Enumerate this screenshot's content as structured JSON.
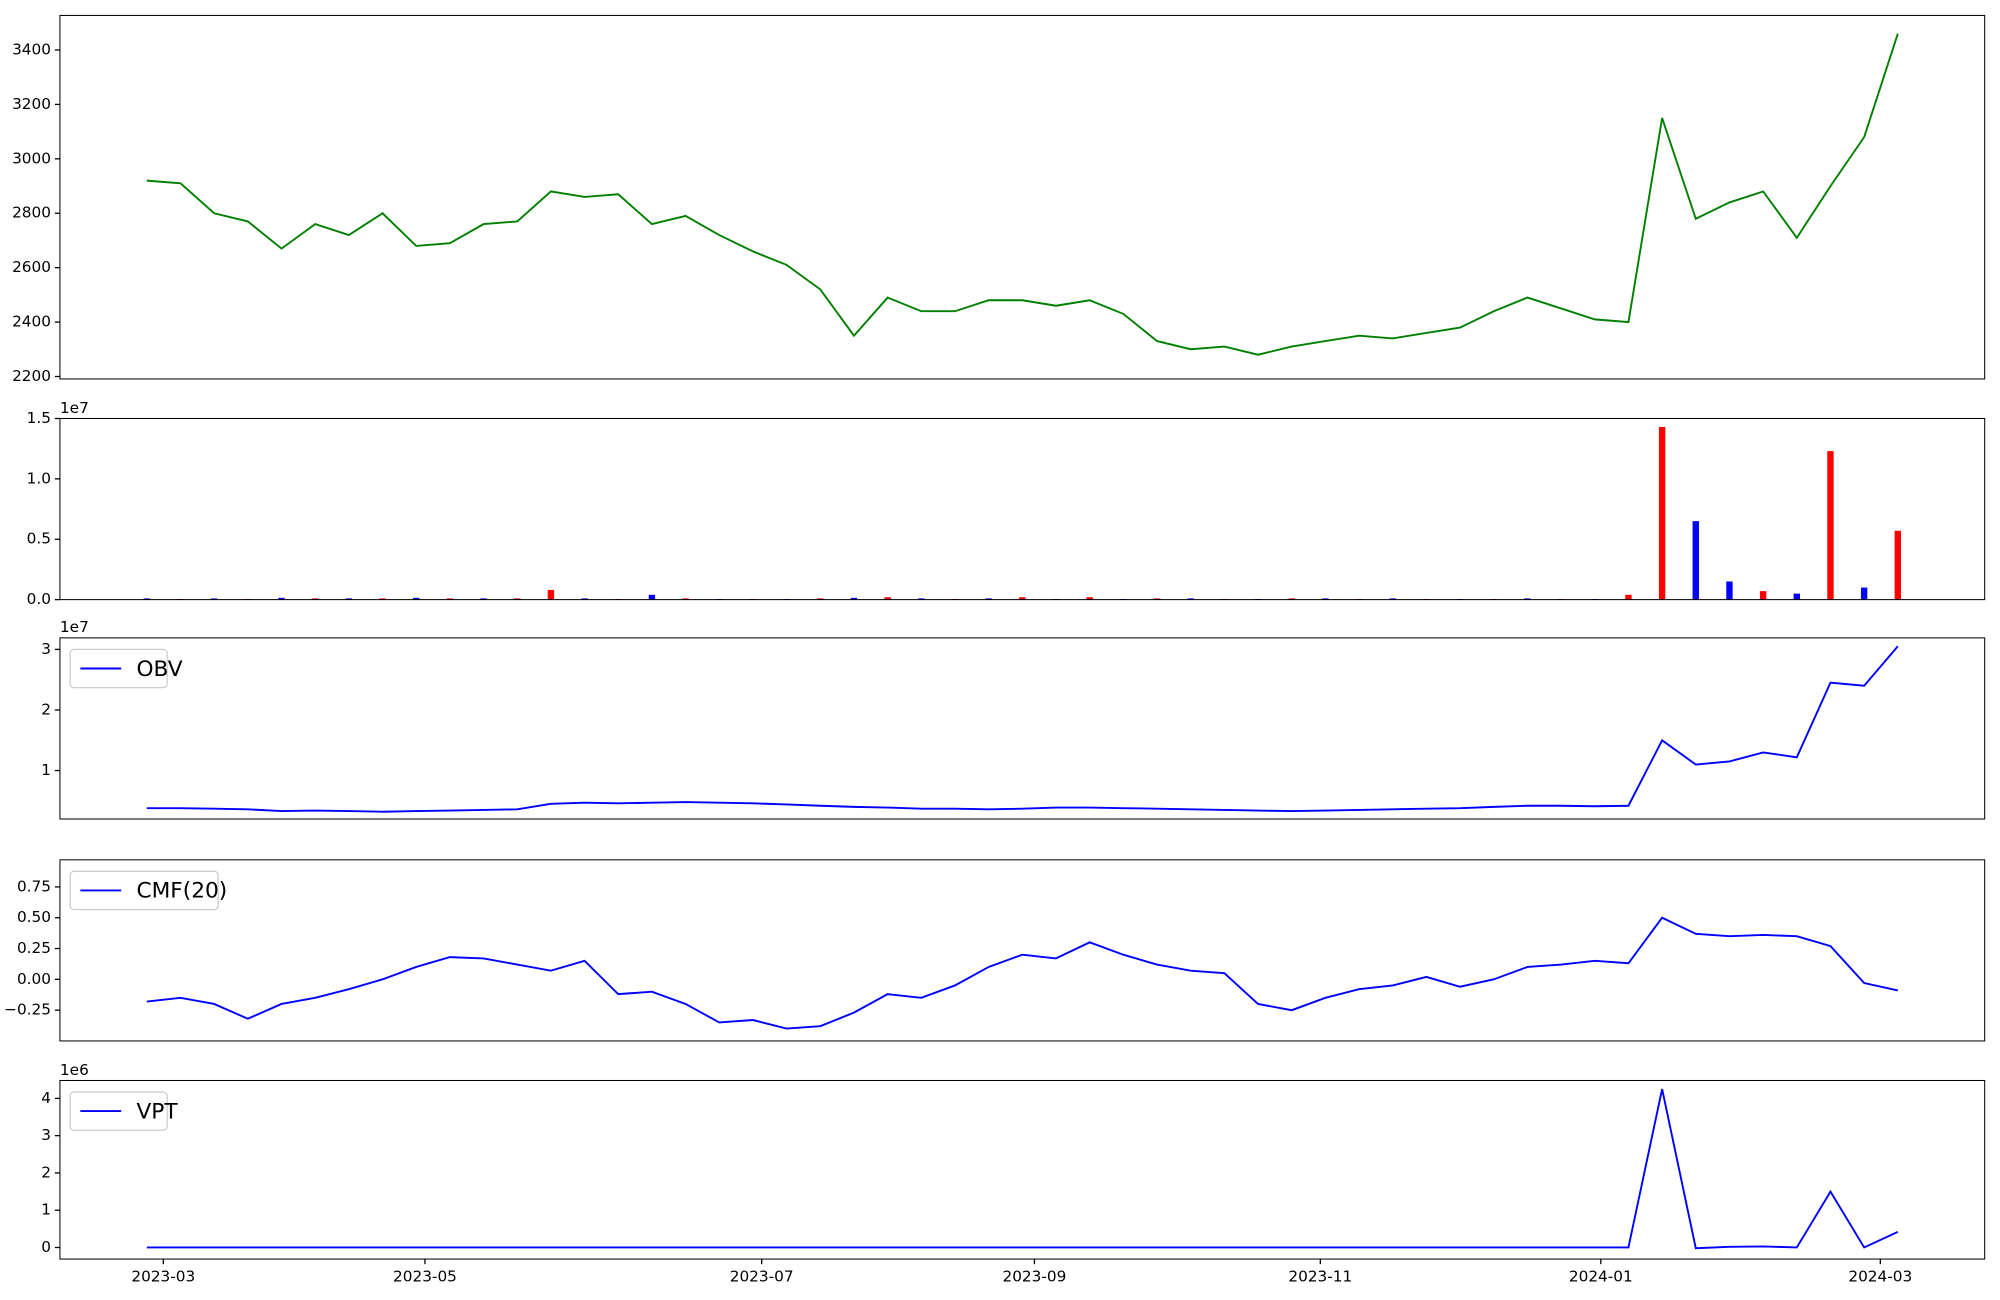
{
  "chart_data": [
    {
      "type": "line",
      "color": "#008000",
      "values": [
        2920,
        2910,
        2800,
        2770,
        2670,
        2760,
        2720,
        2800,
        2680,
        2690,
        2760,
        2770,
        2880,
        2860,
        2870,
        2760,
        2790,
        2720,
        2660,
        2610,
        2520,
        2350,
        2490,
        2440,
        2440,
        2480,
        2480,
        2460,
        2480,
        2430,
        2330,
        2300,
        2310,
        2280,
        2310,
        2330,
        2350,
        2340,
        2360,
        2380,
        2440,
        2490,
        2450,
        2410,
        2400,
        3150,
        2780,
        2840,
        2880,
        2710,
        2900,
        3080,
        3460
      ],
      "ylim": [
        2191,
        3527
      ],
      "yticks": [
        2200,
        2400,
        2600,
        2800,
        3000,
        3200,
        3400
      ],
      "xlim": [
        -2.58,
        54.58
      ]
    },
    {
      "type": "bar",
      "offset_text": "1e7",
      "values": [
        0.01,
        0.005,
        0.01,
        0.005,
        0.015,
        0.01,
        0.01,
        0.01,
        0.015,
        0.01,
        0.01,
        0.01,
        0.08,
        0.01,
        0.005,
        0.04,
        0.01,
        0.005,
        0.005,
        0.005,
        0.01,
        0.015,
        0.02,
        0.01,
        0.005,
        0.01,
        0.02,
        0.005,
        0.02,
        0.005,
        0.01,
        0.01,
        0.005,
        0.005,
        0.01,
        0.01,
        0.005,
        0.01,
        0.005,
        0.005,
        0.005,
        0.01,
        0.005,
        0.005,
        0.04,
        1.43,
        0.65,
        0.15,
        0.07,
        0.05,
        1.23,
        0.1,
        0.57
      ],
      "colors": [
        "#0000ff",
        "#ff0000",
        "#0000ff",
        "#ff0000",
        "#0000ff",
        "#ff0000",
        "#0000ff",
        "#ff0000",
        "#0000ff",
        "#ff0000",
        "#0000ff",
        "#ff0000",
        "#ff0000",
        "#0000ff",
        "#ff0000",
        "#0000ff",
        "#ff0000",
        "#0000ff",
        "#ff0000",
        "#0000ff",
        "#ff0000",
        "#0000ff",
        "#ff0000",
        "#0000ff",
        "#ff0000",
        "#0000ff",
        "#ff0000",
        "#0000ff",
        "#ff0000",
        "#0000ff",
        "#ff0000",
        "#0000ff",
        "#ff0000",
        "#0000ff",
        "#ff0000",
        "#0000ff",
        "#ff0000",
        "#0000ff",
        "#ff0000",
        "#0000ff",
        "#ff0000",
        "#0000ff",
        "#ff0000",
        "#0000ff",
        "#ff0000",
        "#ff0000",
        "#0000ff",
        "#0000ff",
        "#ff0000",
        "#0000ff",
        "#ff0000",
        "#0000ff",
        "#ff0000"
      ],
      "ylim": [
        0,
        1.5
      ],
      "yticks": [
        {
          "value": 0,
          "label": "0.0"
        },
        {
          "value": 0.5,
          "label": "0.5"
        },
        {
          "value": 1,
          "label": "1.0"
        },
        {
          "value": 1.5,
          "label": "1.5"
        }
      ],
      "xlim": [
        -2.58,
        54.58
      ]
    },
    {
      "type": "line",
      "offset_text": "1e7",
      "series": [
        {
          "name": "OBV",
          "color": "#0000ff",
          "values": [
            0.38,
            0.38,
            0.37,
            0.36,
            0.33,
            0.34,
            0.33,
            0.32,
            0.33,
            0.34,
            0.35,
            0.36,
            0.45,
            0.47,
            0.46,
            0.47,
            0.48,
            0.47,
            0.46,
            0.44,
            0.42,
            0.4,
            0.39,
            0.37,
            0.37,
            0.36,
            0.37,
            0.39,
            0.39,
            0.38,
            0.37,
            0.36,
            0.35,
            0.34,
            0.33,
            0.34,
            0.35,
            0.36,
            0.37,
            0.38,
            0.4,
            0.42,
            0.42,
            0.41,
            0.42,
            1.5,
            1.1,
            1.15,
            1.3,
            1.22,
            2.45,
            2.4,
            3.05
          ]
        }
      ],
      "ylim": [
        0.2,
        3.19
      ],
      "yticks": [
        1,
        2,
        3
      ],
      "xlim": [
        -2.58,
        54.58
      ]
    },
    {
      "type": "line",
      "series": [
        {
          "name": "CMF(20)",
          "color": "#0000ff",
          "values": [
            -0.18,
            -0.15,
            -0.2,
            -0.32,
            -0.2,
            -0.15,
            -0.08,
            0.0,
            0.1,
            0.18,
            0.17,
            0.12,
            0.07,
            0.15,
            -0.12,
            -0.1,
            -0.2,
            -0.35,
            -0.33,
            -0.4,
            -0.38,
            -0.27,
            -0.12,
            -0.15,
            -0.05,
            0.1,
            0.2,
            0.17,
            0.3,
            0.2,
            0.12,
            0.07,
            0.05,
            -0.2,
            -0.25,
            -0.15,
            -0.08,
            -0.05,
            0.02,
            -0.06,
            0.0,
            0.1,
            0.12,
            0.15,
            0.13,
            0.5,
            0.37,
            0.35,
            0.36,
            0.35,
            0.27,
            -0.03,
            -0.09
          ]
        }
      ],
      "ylim": [
        -0.5,
        0.97
      ],
      "yticks": [
        {
          "value": -0.25,
          "label": "−0.25"
        },
        {
          "value": 0,
          "label": "0.00"
        },
        {
          "value": 0.25,
          "label": "0.25"
        },
        {
          "value": 0.5,
          "label": "0.50"
        },
        {
          "value": 0.75,
          "label": "0.75"
        }
      ],
      "xlim": [
        -2.58,
        54.58
      ]
    },
    {
      "type": "line",
      "offset_text": "1e6",
      "series": [
        {
          "name": "VPT",
          "color": "#0000ff",
          "values": [
            0,
            0,
            0,
            0,
            0,
            0,
            0,
            0,
            0,
            0,
            0,
            0,
            0,
            0,
            0,
            0,
            0,
            0,
            0,
            0,
            0,
            0,
            0,
            0,
            0,
            0,
            0,
            0,
            0,
            0,
            0,
            0,
            0,
            0,
            0,
            0,
            0,
            0,
            0,
            0,
            0,
            0,
            0,
            0,
            0,
            4.25,
            -0.02,
            0.02,
            0.03,
            0,
            1.5,
            0,
            0.42
          ]
        }
      ],
      "ylim": [
        -0.31,
        4.48
      ],
      "yticks": [
        0,
        1,
        2,
        3,
        4
      ],
      "xlim": [
        -2.58,
        54.58
      ],
      "xticks": [
        {
          "value": 0.49,
          "label": "2023-03"
        },
        {
          "value": 8.26,
          "label": "2023-05"
        },
        {
          "value": 18.26,
          "label": "2023-07"
        },
        {
          "value": 26.36,
          "label": "2023-09"
        },
        {
          "value": 34.85,
          "label": "2023-11"
        },
        {
          "value": 43.18,
          "label": "2024-01"
        },
        {
          "value": 51.48,
          "label": "2024-03"
        }
      ]
    }
  ]
}
